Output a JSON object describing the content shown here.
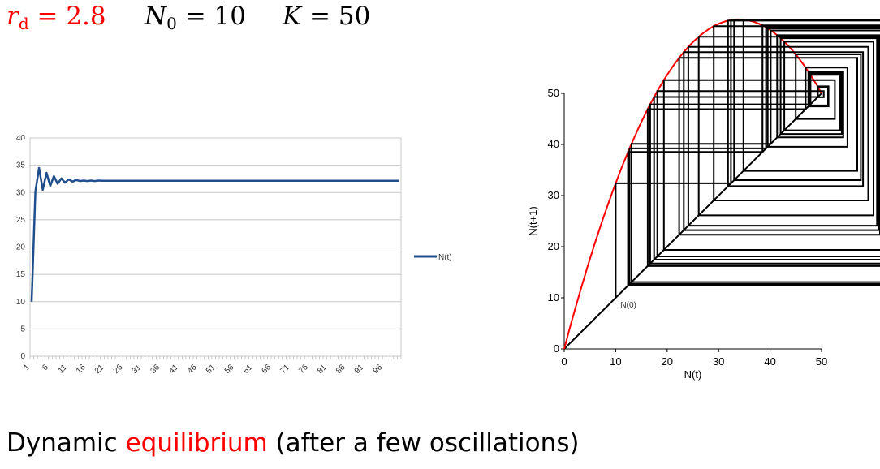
{
  "header": {
    "param1": {
      "sym": "r",
      "sub": "d",
      "rest": " = 2.8"
    },
    "param2": {
      "sym": "N",
      "sub": "0",
      "rest": " = 10"
    },
    "param3": {
      "sym": "K",
      "rest": " = 50"
    }
  },
  "caption": {
    "before": "Dynamic ",
    "highlight": "equilibrium",
    "after": " (after a few oscillations)"
  },
  "colors": {
    "series": "#1f4e8c",
    "parabola": "#ff0000",
    "cobweb": "#000000",
    "highlight": "#ff0000"
  },
  "chart_data": [
    {
      "type": "line",
      "x_start": 1,
      "x_end": 100,
      "xtick_labels": [
        "1",
        "6",
        "11",
        "16",
        "21",
        "26",
        "31",
        "36",
        "41",
        "46",
        "51",
        "56",
        "61",
        "66",
        "71",
        "76",
        "81",
        "86",
        "91",
        "96"
      ],
      "ylim": [
        0,
        40
      ],
      "yticks": [
        0,
        5,
        10,
        15,
        20,
        25,
        30,
        35,
        40
      ],
      "grid": true,
      "legend": "right",
      "series": [
        {
          "name": "N(t)",
          "values": [
            10,
            30.2,
            34.5,
            30.5,
            33.6,
            31.2,
            33.0,
            31.6,
            32.6,
            31.8,
            32.4,
            32.0,
            32.3,
            32.1,
            32.2,
            32.1,
            32.2,
            32.1,
            32.2,
            32.15,
            32.15,
            32.15,
            32.15,
            32.15,
            32.15,
            32.15,
            32.15,
            32.15,
            32.15,
            32.15,
            32.15,
            32.15,
            32.15,
            32.15,
            32.15,
            32.15,
            32.15,
            32.15,
            32.15,
            32.15,
            32.15,
            32.15,
            32.15,
            32.15,
            32.15,
            32.15,
            32.15,
            32.15,
            32.15,
            32.15,
            32.15,
            32.15,
            32.15,
            32.15,
            32.15,
            32.15,
            32.15,
            32.15,
            32.15,
            32.15,
            32.15,
            32.15,
            32.15,
            32.15,
            32.15,
            32.15,
            32.15,
            32.15,
            32.15,
            32.15,
            32.15,
            32.15,
            32.15,
            32.15,
            32.15,
            32.15,
            32.15,
            32.15,
            32.15,
            32.15,
            32.15,
            32.15,
            32.15,
            32.15,
            32.15,
            32.15,
            32.15,
            32.15,
            32.15,
            32.15,
            32.15,
            32.15,
            32.15,
            32.15,
            32.15,
            32.15,
            32.15,
            32.15,
            32.15,
            32.15
          ]
        }
      ]
    },
    {
      "type": "line",
      "xlabel": "N(t)",
      "ylabel": "N(t+1)",
      "xlim": [
        0,
        50
      ],
      "ylim": [
        0,
        50
      ],
      "xticks": [
        0,
        10,
        20,
        30,
        40,
        50
      ],
      "yticks": [
        0,
        10,
        20,
        30,
        40,
        50
      ],
      "grid": false,
      "annotation": {
        "text": "N(0)",
        "x": 10,
        "y": 10
      },
      "series": [
        {
          "values_x": [
            0,
            50
          ],
          "values_y": [
            0,
            50
          ]
        },
        {
          "function": "N + r_d * N * (1 - N/K)",
          "r_d": 2.8,
          "K": 50
        }
      ],
      "cobweb_start": 10
    }
  ]
}
